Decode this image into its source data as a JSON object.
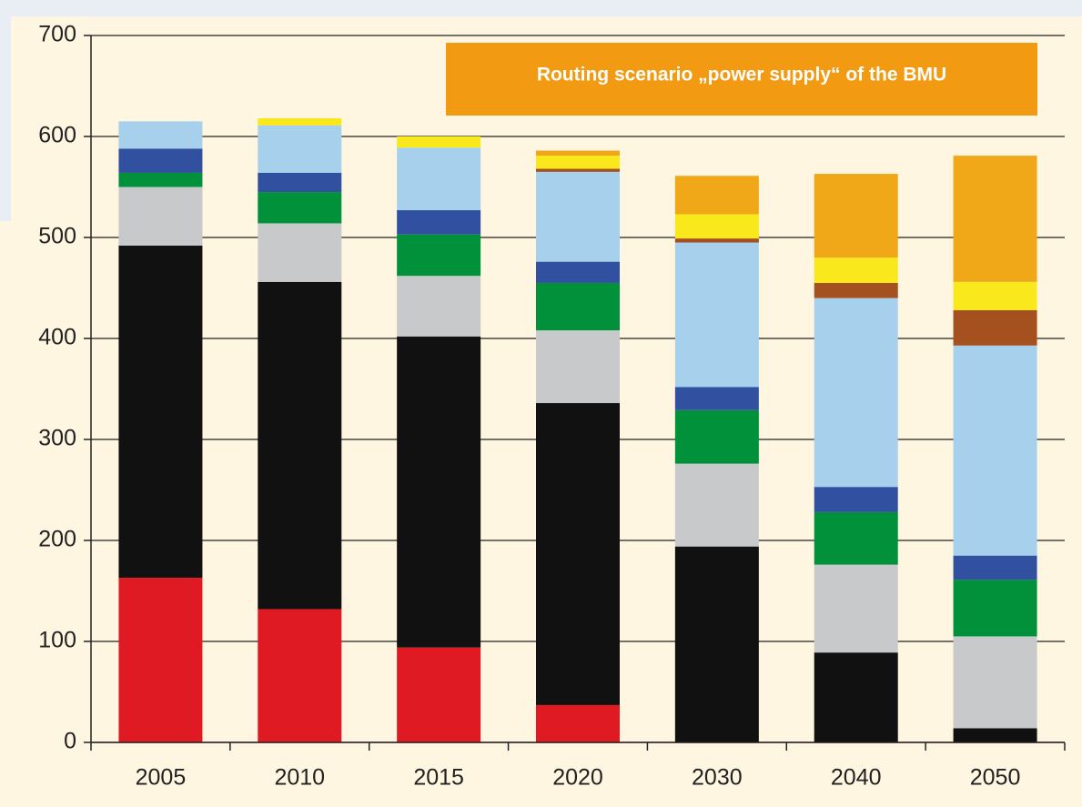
{
  "chart_data": {
    "type": "stacked_bar",
    "title": "Routing scenario „power supply“ of the BMU",
    "categories": [
      "2005",
      "2010",
      "2015",
      "2020",
      "2030",
      "2040",
      "2050"
    ],
    "series": [
      {
        "color": "#e01a22",
        "values": [
          163,
          132,
          94,
          37,
          0,
          0,
          0
        ]
      },
      {
        "color": "#111111",
        "values": [
          329,
          324,
          308,
          299,
          194,
          89,
          14
        ]
      },
      {
        "color": "#c8c9cb",
        "values": [
          58,
          58,
          60,
          72,
          82,
          87,
          91
        ]
      },
      {
        "color": "#00913a",
        "values": [
          14,
          31,
          41,
          47,
          53,
          52,
          56
        ]
      },
      {
        "color": "#3151a0",
        "values": [
          24,
          19,
          24,
          21,
          23,
          25,
          24
        ]
      },
      {
        "color": "#a6d0ec",
        "values": [
          27,
          47,
          62,
          89,
          143,
          187,
          208
        ]
      },
      {
        "color": "#a5501f",
        "values": [
          0,
          0,
          0,
          3,
          4,
          15,
          35
        ]
      },
      {
        "color": "#f9e81c",
        "values": [
          0,
          7,
          11,
          13,
          24,
          25,
          28
        ]
      },
      {
        "color": "#f0a818",
        "values": [
          0,
          0,
          0,
          5,
          38,
          83,
          125
        ]
      }
    ],
    "ylim": [
      0,
      700
    ],
    "yticks": [
      0,
      100,
      200,
      300,
      400,
      500,
      600,
      700
    ],
    "grid": true
  }
}
